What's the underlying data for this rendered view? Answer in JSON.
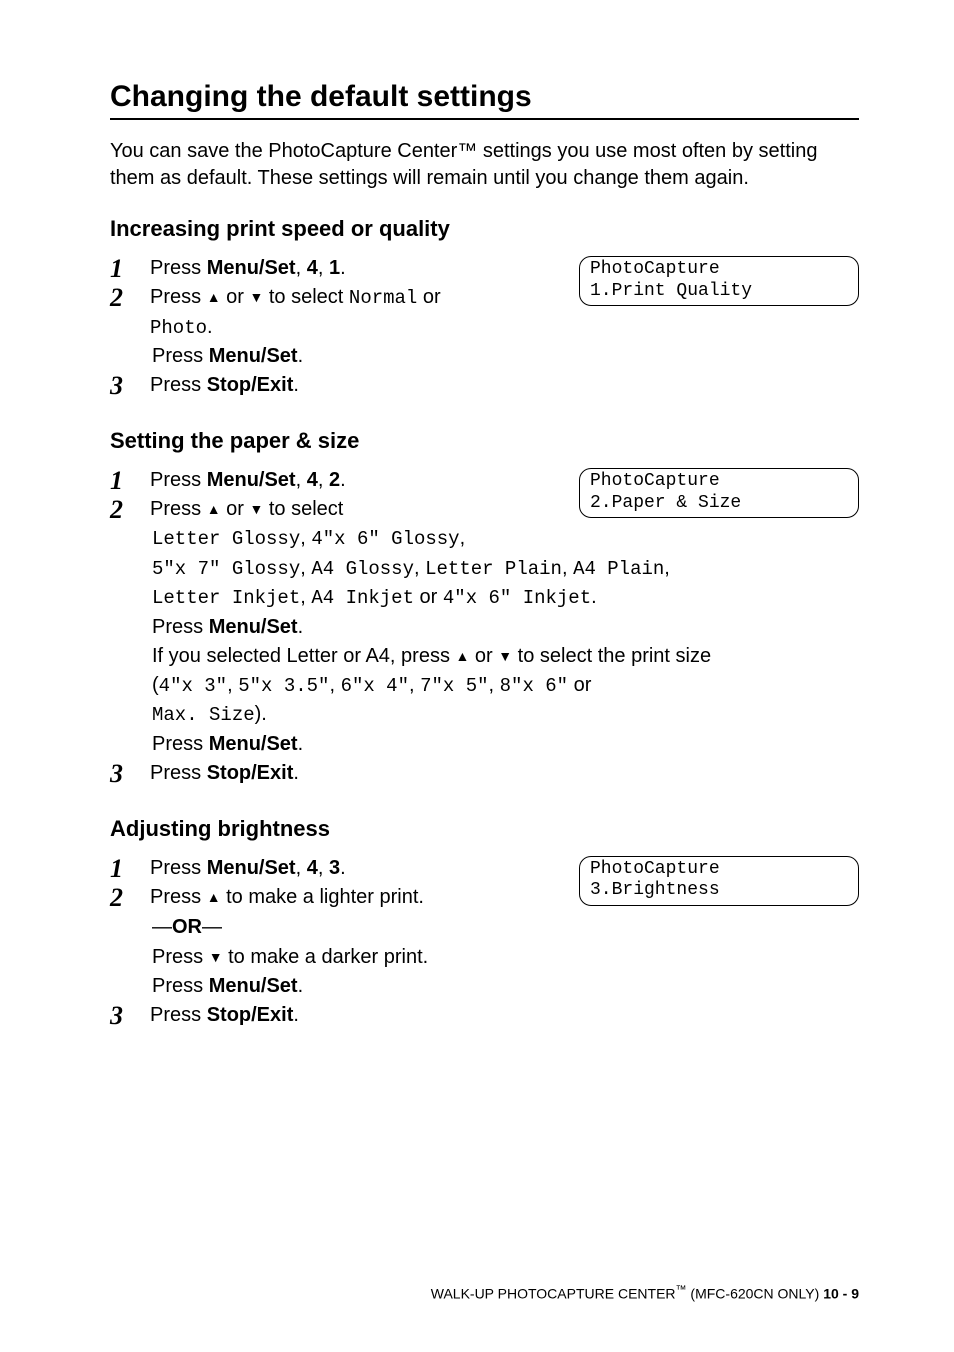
{
  "section": {
    "title": "Changing the default settings",
    "intro": "You can save the PhotoCapture Center™ settings you use most often by setting them as default. These settings will remain until you change them again."
  },
  "sub1": {
    "heading": "Increasing print speed or quality",
    "step1_prefix": "Press ",
    "step1_menuset": "Menu/Set",
    "step1_sep1": ", ",
    "step1_k1": "4",
    "step1_sep2": ", ",
    "step1_k2": "1",
    "step1_end": ".",
    "lcd_l1": "PhotoCapture",
    "lcd_l2": "1.Print Quality",
    "step2_a": "Press ",
    "step2_b": " or ",
    "step2_c": " to select ",
    "step2_opt1": "Normal",
    "step2_or": " or ",
    "step2_opt2": "Photo",
    "step2_end": ".",
    "step2_press": "Press ",
    "step2_menuset": "Menu/Set",
    "step2_period": ".",
    "step3_press": "Press ",
    "step3_btn": "Stop/Exit",
    "step3_period": "."
  },
  "sub2": {
    "heading": "Setting the paper & size",
    "step1_prefix": "Press ",
    "step1_menuset": "Menu/Set",
    "step1_sep1": ", ",
    "step1_k1": "4",
    "step1_sep2": ", ",
    "step1_k2": "2",
    "step1_end": ".",
    "lcd_l1": "PhotoCapture",
    "lcd_l2": "2.Paper & Size",
    "step2_a": "Press ",
    "step2_b": " or ",
    "step2_c": " to select",
    "opts_line1a": "Letter Glossy",
    "opts_line1s1": ", ",
    "opts_line1b": "4\"x 6\" Glossy",
    "opts_line1s2": ",",
    "opts_line2a": "5\"x 7\" Glossy",
    "opts_line2s1": ", ",
    "opts_line2b": "A4 Glossy",
    "opts_line2s2": ", ",
    "opts_line2c": "Letter Plain",
    "opts_line2s3": ", ",
    "opts_line2d": "A4 Plain",
    "opts_line2s4": ",",
    "opts_line3a": "Letter Inkjet",
    "opts_line3s1": ", ",
    "opts_line3b": "A4 Inkjet",
    "opts_line3_or": " or ",
    "opts_line3c": "4\"x 6\" Inkjet",
    "opts_line3end": ".",
    "step2_press": "Press ",
    "step2_menuset": "Menu/Set",
    "step2_period": ".",
    "if_text_a": "If you selected Letter or A4, press ",
    "if_text_b": " or ",
    "if_text_c": " to select the print size",
    "sizes_open": "(",
    "sz1": "4\"x 3\"",
    "szs1": ", ",
    "sz2": "5\"x 3.5\"",
    "szs2": ", ",
    "sz3": "6\"x 4\"",
    "szs3": ", ",
    "sz4": "7\"x 5\"",
    "szs4": ", ",
    "sz5": "8\"x 6\"",
    "sz_or": " or ",
    "sz6": "Max. Size",
    "sizes_close": ").",
    "step2b_press": "Press ",
    "step2b_menuset": "Menu/Set",
    "step2b_period": ".",
    "step3_press": "Press ",
    "step3_btn": "Stop/Exit",
    "step3_period": "."
  },
  "sub3": {
    "heading": "Adjusting brightness",
    "step1_prefix": "Press ",
    "step1_menuset": "Menu/Set",
    "step1_sep1": ", ",
    "step1_k1": "4",
    "step1_sep2": ", ",
    "step1_k2": "3",
    "step1_end": ".",
    "lcd_l1": "PhotoCapture",
    "lcd_l2": "3.Brightness",
    "step2_a": "Press ",
    "step2_b": " to make a lighter print.",
    "or_dash": "—",
    "or_text": "OR",
    "step2_c": "Press ",
    "step2_d": " to make a darker print.",
    "step2_press": "Press ",
    "step2_menuset": "Menu/Set",
    "step2_period": ".",
    "step3_press": "Press ",
    "step3_btn": "Stop/Exit",
    "step3_period": "."
  },
  "footer": {
    "text_a": "WALK-UP PHOTOCAPTURE CENTER",
    "text_b": " (MFC-620CN ONLY)   ",
    "page": "10 - 9"
  },
  "glyphs": {
    "up": "▲",
    "down": "▼"
  }
}
